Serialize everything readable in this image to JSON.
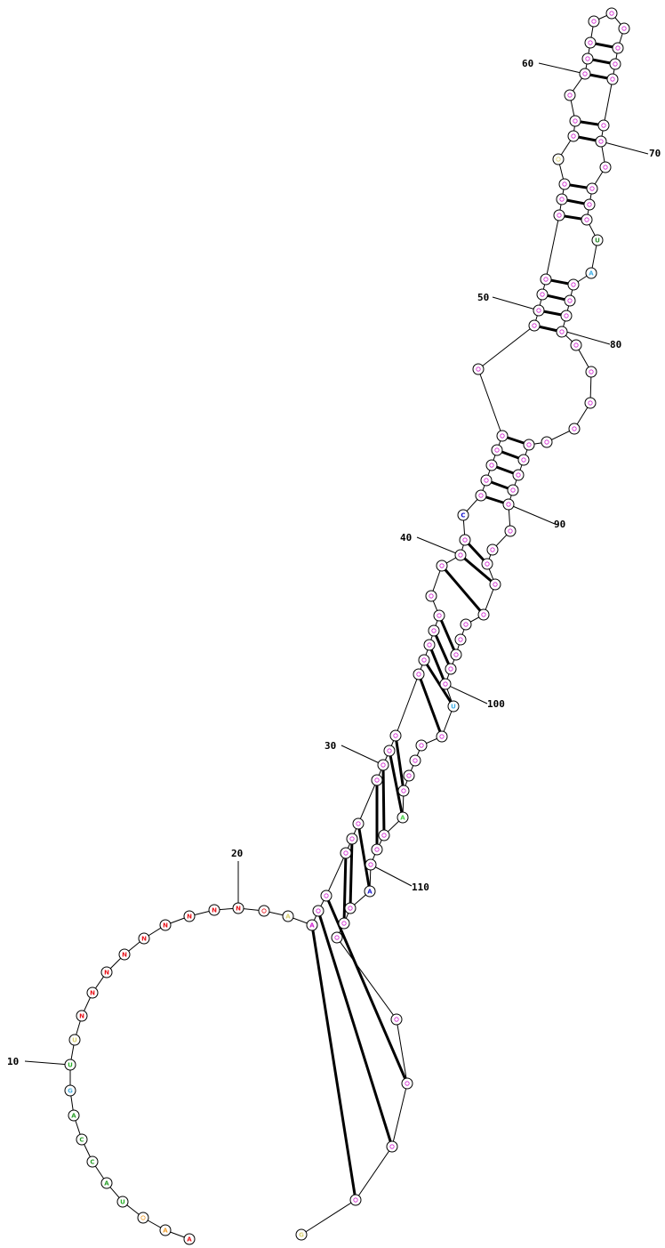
{
  "diagram": {
    "type": "rna-secondary-structure",
    "index_labels": [
      "10",
      "20",
      "30",
      "40",
      "50",
      "60",
      "70",
      "80",
      "90",
      "100",
      "110"
    ],
    "visible_bases": [
      "A",
      "A",
      "A",
      "U",
      "A",
      "C",
      "C",
      "A",
      "G",
      "U",
      "U",
      "N",
      "N",
      "N",
      "N",
      "N",
      "N",
      "N",
      "N",
      "N",
      "A",
      "A",
      "C",
      "C",
      "C",
      "C",
      "G",
      "U",
      "A",
      "G",
      "U",
      "A",
      "A",
      "C",
      "G"
    ],
    "colors": {
      "N": "#e8151c",
      "A_orange": "#f0a030",
      "A_green": "#2a9f2a",
      "C_green": "#2a9f2a",
      "U_green": "#2ab02a",
      "G_blue": "#4ab0e0",
      "A_blue": "#1010d0",
      "C_blue": "#1a1ad0",
      "A_cyan": "#40b0e8",
      "U_cyan": "#40b0e8",
      "G_darkgreen": "#2a8a2a",
      "C_lime": "#46d046",
      "A_yellow": "#d9d070",
      "pink_fill": "#f4cdf4",
      "pink_text": "#d020d0",
      "yellow_fill": "#fbf6c8",
      "cyan_fill": "#d6f0fb",
      "green_fill": "#d4f7d4",
      "orange_fill": "#fde6c2"
    }
  }
}
